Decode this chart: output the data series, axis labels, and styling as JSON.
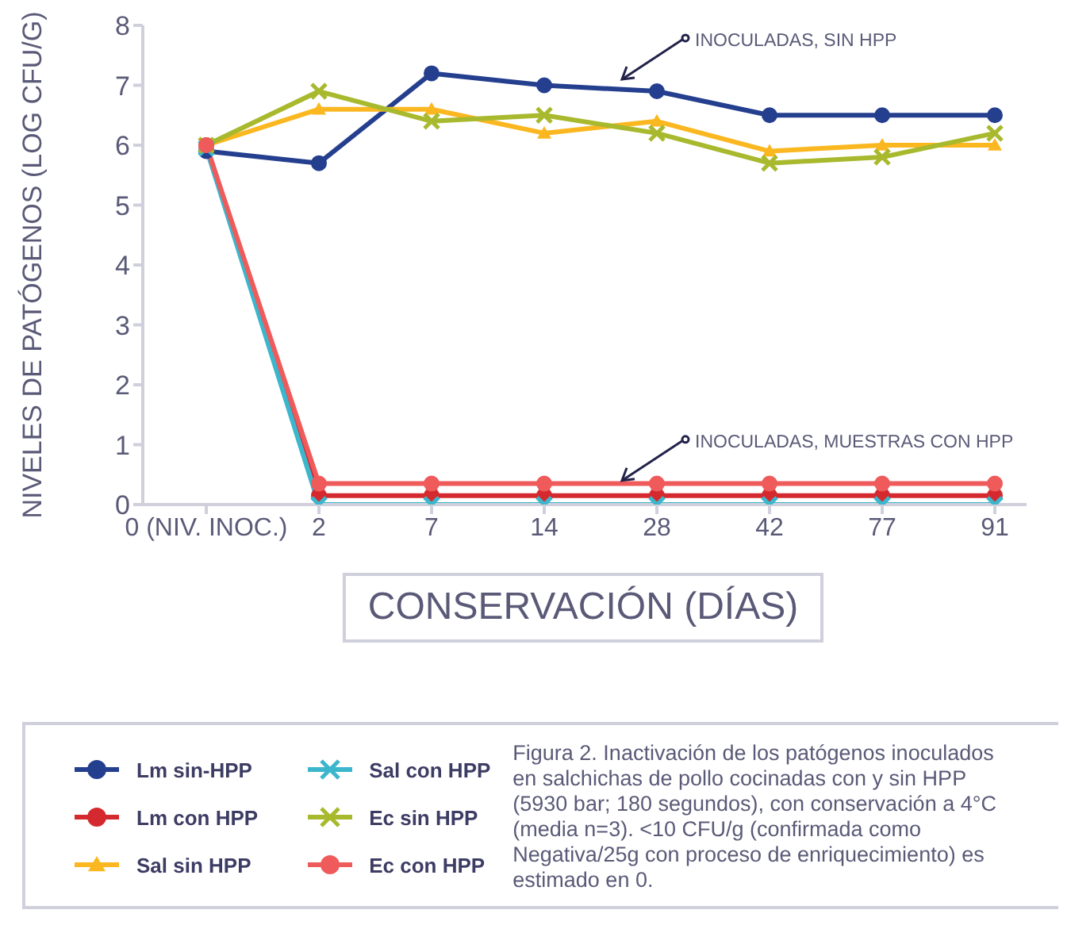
{
  "chart_data": {
    "type": "line",
    "xlabel": "CONSERVACIÓN (DÍAS)",
    "ylabel": "NIVELES DE PATÓGENOS (LOG CFU/G)",
    "categories": [
      "0 (NIV. INOC.)",
      "2",
      "7",
      "14",
      "28",
      "42",
      "77",
      "91"
    ],
    "ylim": [
      0,
      8
    ],
    "yticks": [
      0,
      1,
      2,
      3,
      4,
      5,
      6,
      7,
      8
    ],
    "grid": false,
    "legend": "bottom",
    "line_style": "solid",
    "series": [
      {
        "name": "Lm sin-HPP",
        "color": "#253f8f",
        "marker": "circle",
        "values": [
          5.9,
          5.7,
          7.2,
          7.0,
          6.9,
          6.5,
          6.5,
          6.5
        ]
      },
      {
        "name": "Lm con HPP",
        "color": "#d42a2f",
        "marker": "circle",
        "values": [
          6.0,
          0.15,
          0.15,
          0.15,
          0.15,
          0.15,
          0.15,
          0.15
        ]
      },
      {
        "name": "Sal sin HPP",
        "color": "#fbb720",
        "marker": "triangle",
        "values": [
          6.0,
          6.6,
          6.6,
          6.2,
          6.4,
          5.9,
          6.0,
          6.0
        ]
      },
      {
        "name": "Sal con HPP",
        "color": "#3bb6cc",
        "marker": "cross",
        "values": [
          5.95,
          0,
          0,
          0,
          0,
          0,
          0,
          0
        ]
      },
      {
        "name": "Ec sin HPP",
        "color": "#a8b92e",
        "marker": "cross",
        "values": [
          6.0,
          6.9,
          6.4,
          6.5,
          6.2,
          5.7,
          5.8,
          6.2
        ]
      },
      {
        "name": "Ec con HPP",
        "color": "#ef5b5b",
        "marker": "circle",
        "values": [
          6.0,
          0.35,
          0.35,
          0.35,
          0.35,
          0.35,
          0.35,
          0.35
        ]
      }
    ],
    "annotations": [
      {
        "text": "INOCULADAS, SIN HPP",
        "x": "28",
        "y": 7.1
      },
      {
        "text": "INOCULADAS, MUESTRAS CON HPP",
        "x": "28",
        "y": 0.4
      },
      "Figura 2. Inactivación de los patógenos inoculados en salchichas de pollo cocinadas con y sin HPP (5930 bar; 180 segundos), con conservación a 4°C (media n=3). <10 CFU/g (confirmada como Negativa/25g con proceso de enriquecimiento) es estimado en 0."
    ]
  }
}
